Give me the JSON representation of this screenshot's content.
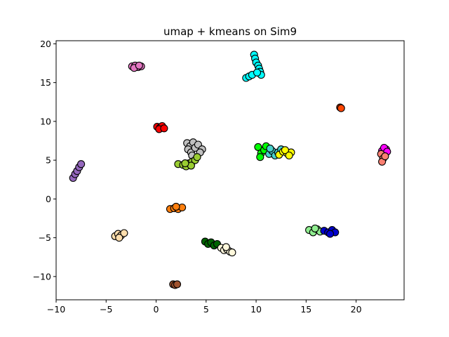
{
  "chart_data": {
    "type": "scatter",
    "title": "umap + kmeans on Sim9",
    "xlabel": "",
    "ylabel": "",
    "xlim": [
      -10,
      24.8
    ],
    "ylim": [
      -13,
      20.4
    ],
    "xticks": [
      -10,
      -5,
      0,
      5,
      10,
      15,
      20
    ],
    "yticks": [
      -10,
      -5,
      0,
      5,
      10,
      15,
      20
    ],
    "grid": false,
    "legend": "none",
    "marker_edge_color": "#000000",
    "clusters": [
      {
        "color": "#e377c2",
        "points": [
          [
            -2.4,
            17.1
          ],
          [
            -2.1,
            17.2
          ],
          [
            -1.8,
            17.0
          ],
          [
            -1.5,
            17.1
          ],
          [
            -2.2,
            16.9
          ],
          [
            -1.7,
            17.2
          ]
        ]
      },
      {
        "color": "#00ffff",
        "points": [
          [
            9.0,
            15.6
          ],
          [
            9.3,
            15.8
          ],
          [
            9.6,
            16.0
          ],
          [
            9.8,
            18.6
          ],
          [
            9.9,
            18.1
          ],
          [
            10.0,
            17.6
          ],
          [
            10.2,
            17.2
          ],
          [
            10.3,
            16.8
          ],
          [
            10.4,
            16.4
          ],
          [
            10.5,
            16.0
          ],
          [
            10.1,
            16.3
          ]
        ]
      },
      {
        "color": "#ff4500",
        "points": [
          [
            18.4,
            11.8
          ],
          [
            18.5,
            11.7
          ]
        ]
      },
      {
        "color": "#ff0000",
        "points": [
          [
            0.1,
            9.3
          ],
          [
            0.4,
            9.2
          ],
          [
            0.6,
            9.4
          ],
          [
            0.3,
            9.0
          ],
          [
            0.8,
            9.1
          ]
        ]
      },
      {
        "color": "#c0c0c0",
        "points": [
          [
            3.1,
            7.2
          ],
          [
            3.4,
            6.8
          ],
          [
            3.7,
            7.3
          ],
          [
            3.2,
            6.4
          ],
          [
            3.5,
            6.0
          ],
          [
            3.9,
            6.6
          ],
          [
            4.2,
            7.0
          ],
          [
            4.6,
            6.4
          ],
          [
            3.6,
            5.6
          ],
          [
            4.4,
            6.0
          ]
        ]
      },
      {
        "color": "#9acd32",
        "points": [
          [
            2.2,
            4.5
          ],
          [
            2.7,
            4.4
          ],
          [
            3.0,
            4.2
          ],
          [
            3.3,
            4.6
          ],
          [
            3.6,
            4.8
          ],
          [
            3.9,
            5.0
          ],
          [
            4.1,
            5.4
          ],
          [
            3.5,
            4.3
          ],
          [
            2.9,
            4.6
          ]
        ]
      },
      {
        "color": "#00ff00",
        "points": [
          [
            10.2,
            6.7
          ],
          [
            10.5,
            5.9
          ],
          [
            10.8,
            6.3
          ],
          [
            10.4,
            5.4
          ],
          [
            11.0,
            6.8
          ]
        ]
      },
      {
        "color": "#48d1cc",
        "points": [
          [
            11.3,
            5.8
          ],
          [
            11.6,
            6.2
          ],
          [
            11.9,
            5.6
          ],
          [
            12.2,
            6.0
          ],
          [
            11.4,
            6.5
          ],
          [
            12.5,
            6.4
          ]
        ]
      },
      {
        "color": "#ffff00",
        "points": [
          [
            12.3,
            5.7
          ],
          [
            12.7,
            6.1
          ],
          [
            13.1,
            5.9
          ],
          [
            13.5,
            6.0
          ],
          [
            12.9,
            6.3
          ],
          [
            13.3,
            5.6
          ]
        ]
      },
      {
        "color": "#ff00ff",
        "points": [
          [
            22.6,
            6.2
          ],
          [
            23.0,
            6.4
          ],
          [
            22.8,
            6.6
          ],
          [
            23.1,
            6.1
          ]
        ]
      },
      {
        "color": "#fa8072",
        "points": [
          [
            22.5,
            5.8
          ],
          [
            22.7,
            5.2
          ],
          [
            22.6,
            4.8
          ],
          [
            22.9,
            5.5
          ]
        ]
      },
      {
        "color": "#9467bd",
        "points": [
          [
            -8.3,
            2.7
          ],
          [
            -8.1,
            3.2
          ],
          [
            -7.9,
            3.6
          ],
          [
            -7.7,
            4.1
          ],
          [
            -7.5,
            4.5
          ]
        ]
      },
      {
        "color": "#ff7f0e",
        "points": [
          [
            1.4,
            -1.3
          ],
          [
            1.8,
            -1.2
          ],
          [
            2.2,
            -1.3
          ],
          [
            2.6,
            -1.1
          ],
          [
            2.0,
            -1.0
          ]
        ]
      },
      {
        "color": "#90ee90",
        "points": [
          [
            15.3,
            -4.0
          ],
          [
            15.7,
            -4.3
          ],
          [
            16.1,
            -3.9
          ],
          [
            16.4,
            -4.2
          ],
          [
            15.9,
            -3.8
          ]
        ]
      },
      {
        "color": "#0000cd",
        "points": [
          [
            16.8,
            -4.1
          ],
          [
            17.2,
            -4.3
          ],
          [
            17.6,
            -4.0
          ],
          [
            17.9,
            -4.3
          ],
          [
            17.4,
            -4.5
          ]
        ]
      },
      {
        "color": "#ffdead",
        "points": [
          [
            -4.1,
            -4.8
          ],
          [
            -3.8,
            -4.5
          ],
          [
            -3.5,
            -4.7
          ],
          [
            -3.2,
            -4.4
          ],
          [
            -3.7,
            -5.0
          ]
        ]
      },
      {
        "color": "#006400",
        "points": [
          [
            4.9,
            -5.5
          ],
          [
            5.2,
            -5.8
          ],
          [
            5.5,
            -5.6
          ],
          [
            5.8,
            -6.0
          ],
          [
            6.1,
            -5.8
          ]
        ]
      },
      {
        "color": "#fff8dc",
        "points": [
          [
            6.5,
            -6.3
          ],
          [
            6.8,
            -6.6
          ],
          [
            7.1,
            -6.5
          ],
          [
            7.4,
            -6.8
          ],
          [
            7.0,
            -6.2
          ],
          [
            7.6,
            -6.9
          ]
        ]
      },
      {
        "color": "#a0522d",
        "points": [
          [
            1.7,
            -11.0
          ],
          [
            1.9,
            -11.1
          ],
          [
            2.1,
            -11.0
          ]
        ]
      }
    ]
  }
}
